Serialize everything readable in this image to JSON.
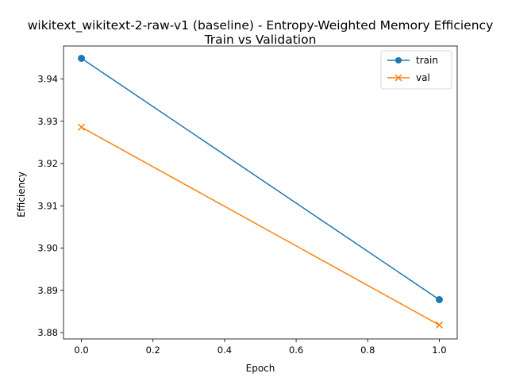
{
  "chart_data": {
    "type": "line",
    "title": "wikitext_wikitext-2-raw-v1 (baseline) - Entropy-Weighted Memory Efficiency",
    "subtitle": "Train vs Validation",
    "xlabel": "Epoch",
    "ylabel": "Efficiency",
    "x": [
      0.0,
      1.0
    ],
    "xlim": [
      -0.05,
      1.05
    ],
    "ylim": [
      3.8785,
      3.9478
    ],
    "xticks": [
      "0.0",
      "0.2",
      "0.4",
      "0.6",
      "0.8",
      "1.0"
    ],
    "yticks": [
      "3.88",
      "3.89",
      "3.90",
      "3.91",
      "3.92",
      "3.93",
      "3.94"
    ],
    "grid": false,
    "legend_position": "top-right",
    "series": [
      {
        "name": "train",
        "values": [
          3.9449,
          3.8878
        ],
        "color": "#1f77b4",
        "marker": "circle"
      },
      {
        "name": "val",
        "values": [
          3.9286,
          3.8818
        ],
        "color": "#ff7f0e",
        "marker": "x"
      }
    ]
  }
}
